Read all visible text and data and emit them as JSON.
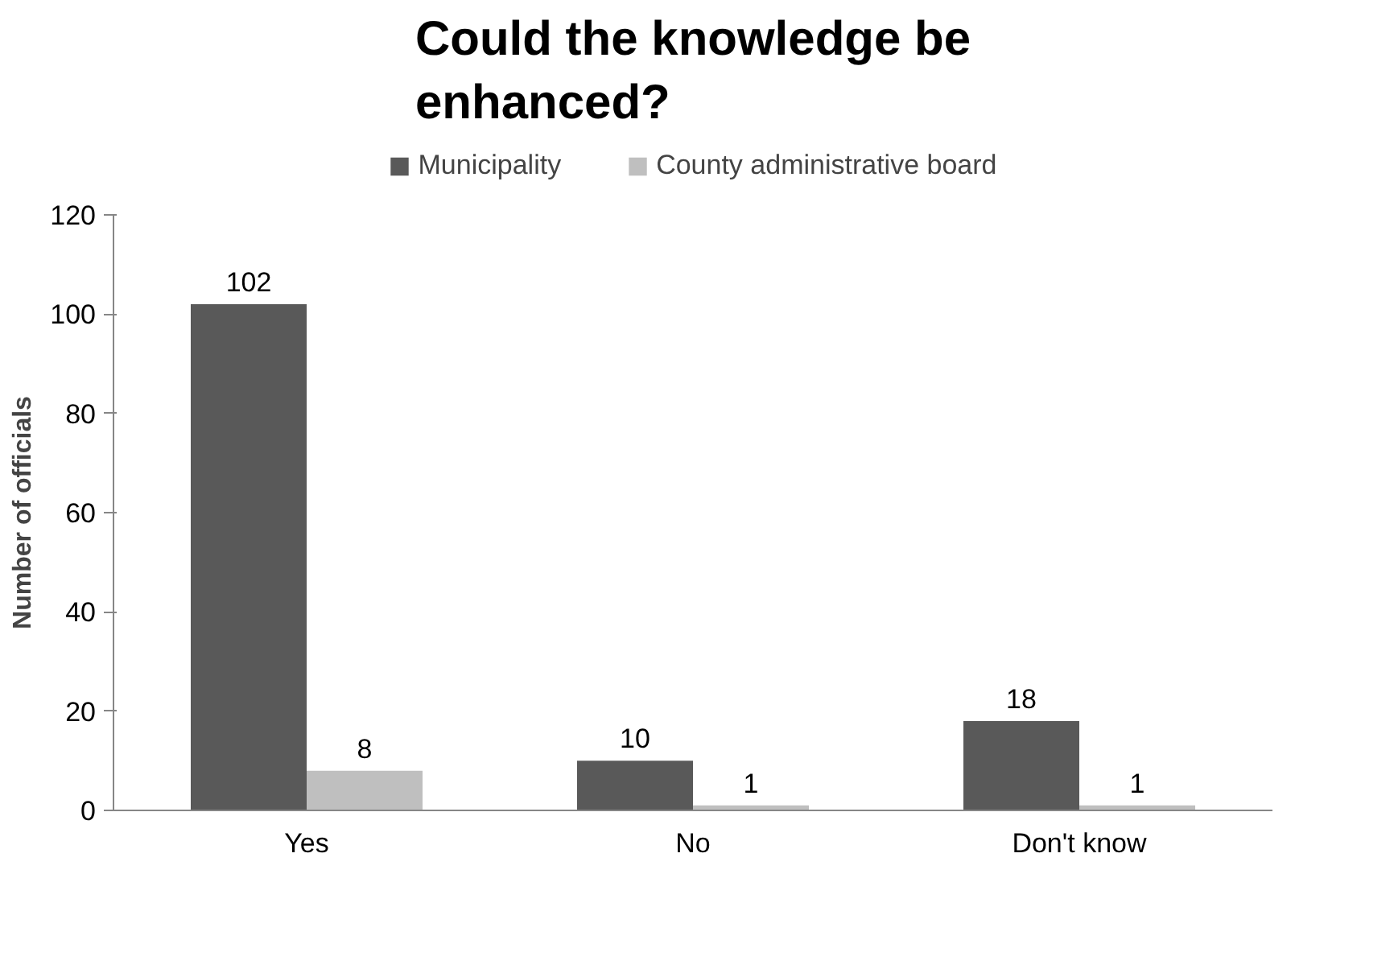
{
  "chart_data": {
    "type": "bar",
    "title": "Could the knowledge be enhanced?",
    "ylabel": "Number of officials",
    "categories": [
      "Yes",
      "No",
      "Don't know"
    ],
    "series": [
      {
        "name": "Municipality",
        "color": "#595959",
        "values": [
          102,
          10,
          18
        ]
      },
      {
        "name": "County administrative board",
        "color": "#bfbfbf",
        "values": [
          8,
          1,
          1
        ]
      }
    ],
    "ylim": [
      0,
      120
    ],
    "yticks": [
      0,
      20,
      40,
      60,
      80,
      100,
      120
    ],
    "data_labels": true,
    "legend": "top",
    "grid": false
  }
}
